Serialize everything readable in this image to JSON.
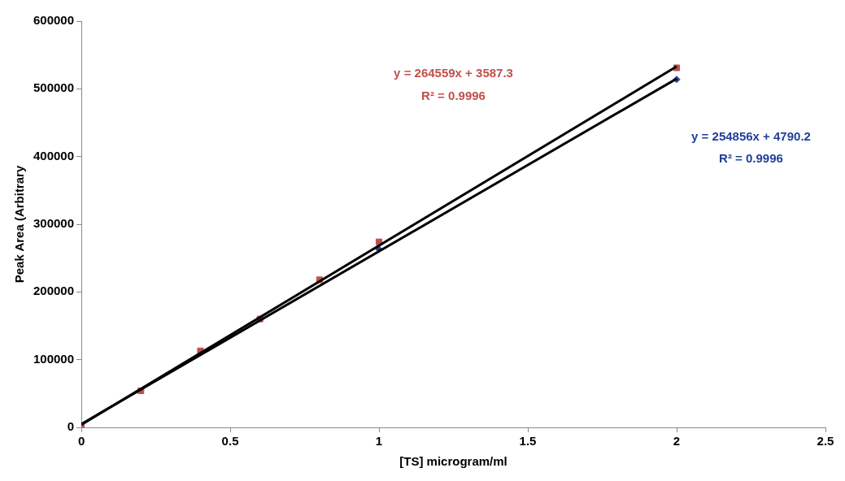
{
  "chart_data": {
    "type": "scatter",
    "xlabel": "[TS] microgram/ml",
    "ylabel": "Peak Area (Arbitrary",
    "xlim": [
      0,
      2.5
    ],
    "xticks": [
      0,
      0.5,
      1,
      1.5,
      2,
      2.5
    ],
    "ylim": [
      0,
      600000
    ],
    "yticks": [
      0,
      100000,
      200000,
      300000,
      400000,
      500000,
      600000
    ],
    "grid": false,
    "legend": false,
    "series": [
      {
        "marker": "square",
        "color": "#c0504d",
        "x": [
          0,
          0.2,
          0.4,
          0.6,
          0.8,
          1,
          2
        ],
        "values": [
          0,
          54000,
          113000,
          160000,
          218000,
          274000,
          531000
        ]
      },
      {
        "marker": "diamond",
        "color": "#1f3f99",
        "x": [
          1,
          2
        ],
        "values": [
          263000,
          514000
        ]
      },
      {
        "type": "line",
        "marker": "none",
        "color": "#000000",
        "x": [
          0,
          2
        ],
        "values": [
          4000,
          533000
        ]
      },
      {
        "type": "line",
        "marker": "none",
        "color": "#000000",
        "x": [
          0,
          2
        ],
        "values": [
          5000,
          515000
        ]
      }
    ],
    "annotations": [
      "y = 264559x + 3587.3",
      "R² = 0.9996",
      "y = 254856x + 4790.2",
      "R² = 0.9996"
    ]
  }
}
